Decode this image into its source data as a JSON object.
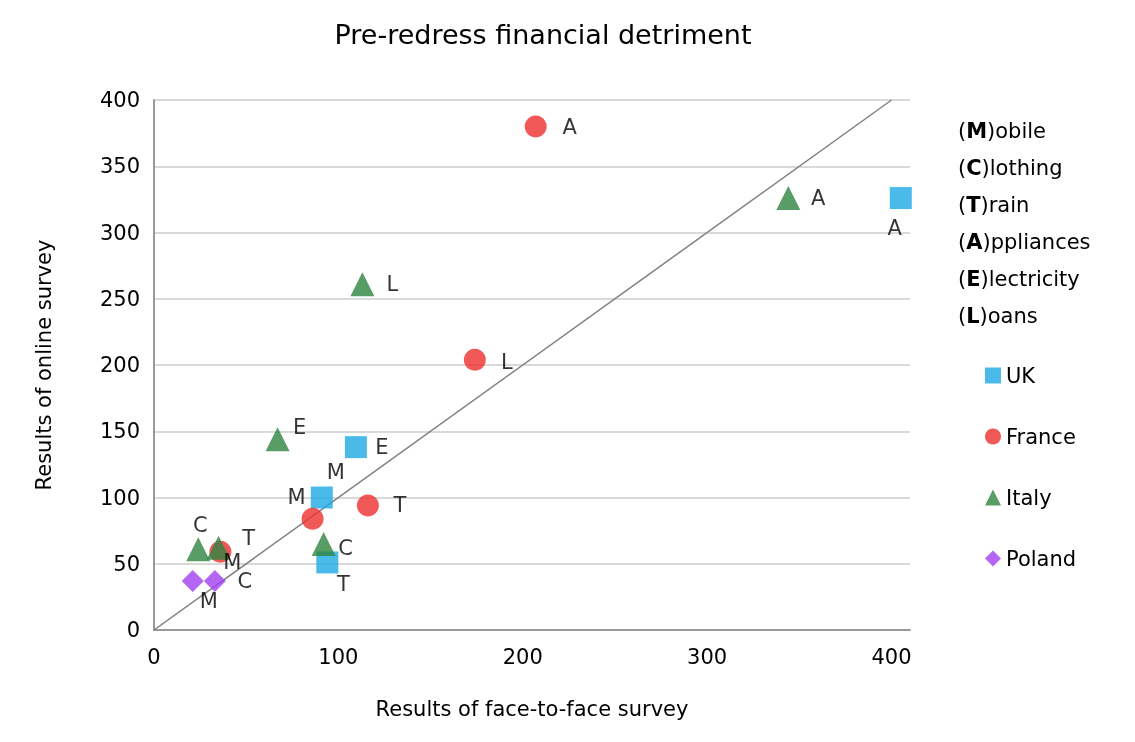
{
  "chart_data": {
    "type": "scatter",
    "title": "Pre-redress financial detriment",
    "xlabel": "Results of face-to-face survey",
    "ylabel": "Results of online survey",
    "xlim": [
      0,
      410
    ],
    "xticks": [
      0,
      100,
      200,
      300,
      400
    ],
    "ylim": [
      0,
      400
    ],
    "yticks": [
      0,
      50,
      100,
      150,
      200,
      250,
      300,
      350,
      400
    ],
    "grid": "y",
    "legend": "right",
    "annotations": [
      "(M)obile",
      "(C)lothing",
      "(T)rain",
      "(A)ppliances",
      "(E)lectricity",
      "(L)oans"
    ],
    "series": [
      {
        "name": "UK",
        "color": "#1daae3",
        "marker": "square",
        "x": [
          405,
          109.5,
          91,
          94
        ],
        "values": [
          326,
          138,
          100,
          51
        ],
        "value_labels": [
          "A",
          "E",
          "M",
          "T"
        ]
      },
      {
        "name": "France",
        "color": "#ee3030",
        "marker": "circle",
        "x": [
          207,
          174,
          116,
          86,
          36
        ],
        "values": [
          380,
          204,
          94,
          84,
          59
        ],
        "value_labels": [
          "A",
          "L",
          "T",
          "M",
          "M"
        ]
      },
      {
        "name": "Italy",
        "color": "#2e8540",
        "marker": "triangle",
        "x": [
          344,
          113,
          67,
          92,
          24,
          35
        ],
        "values": [
          326,
          261,
          144,
          65,
          61,
          62
        ],
        "value_labels": [
          "A",
          "L",
          "E",
          "C",
          "C",
          "T"
        ]
      },
      {
        "name": "Poland",
        "color": "#a23ef0",
        "marker": "diamond",
        "x": [
          21,
          33
        ],
        "values": [
          37,
          37
        ],
        "value_labels": [
          "M",
          "C"
        ]
      },
      {
        "type": "line",
        "color": "#808080",
        "marker": "none",
        "x": [
          0,
          400
        ],
        "values": [
          0,
          400
        ]
      }
    ]
  }
}
